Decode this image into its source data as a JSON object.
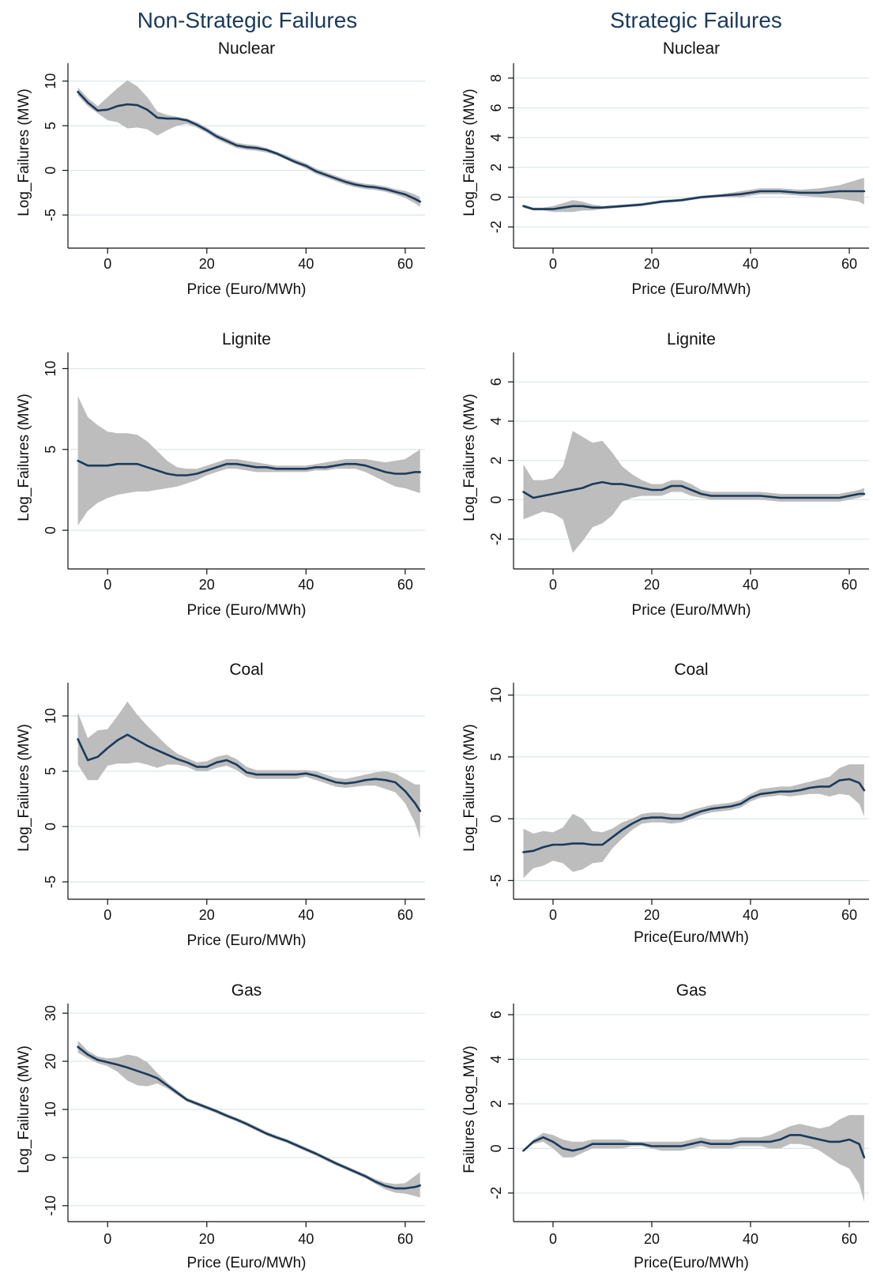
{
  "column_titles": [
    "Non-Strategic Failures",
    "Strategic Failures"
  ],
  "chart_data": [
    {
      "type": "line",
      "column": "Non-Strategic Failures",
      "title": "Nuclear",
      "xlabel": "Price (Euro/MWh)",
      "ylabel": "Log_Failures (MW)",
      "xlim": [
        -8,
        64
      ],
      "ylim": [
        -8,
        12
      ],
      "xticks": [
        0,
        20,
        40,
        60
      ],
      "yticks": [
        -5,
        0,
        5,
        10
      ],
      "grid": true,
      "x": [
        -6,
        -4,
        -2,
        0,
        2,
        4,
        6,
        8,
        10,
        12,
        14,
        16,
        18,
        20,
        22,
        24,
        26,
        28,
        30,
        32,
        34,
        36,
        38,
        40,
        42,
        44,
        46,
        48,
        50,
        52,
        54,
        56,
        58,
        60,
        62,
        63
      ],
      "y": [
        8.8,
        7.6,
        6.7,
        6.8,
        7.2,
        7.4,
        7.3,
        6.8,
        5.9,
        5.8,
        5.8,
        5.6,
        5.1,
        4.5,
        3.8,
        3.3,
        2.8,
        2.6,
        2.5,
        2.3,
        1.9,
        1.4,
        0.9,
        0.5,
        -0.1,
        -0.5,
        -0.9,
        -1.3,
        -1.6,
        -1.8,
        -1.9,
        -2.1,
        -2.4,
        -2.7,
        -3.2,
        -3.5
      ],
      "upper": [
        9.3,
        8.1,
        7.2,
        8.2,
        9.2,
        10.1,
        9.4,
        8.2,
        6.6,
        6.2,
        6.0,
        5.8,
        5.4,
        4.8,
        4.1,
        3.6,
        3.1,
        2.9,
        2.8,
        2.5,
        2.1,
        1.7,
        1.2,
        0.8,
        0.2,
        -0.2,
        -0.6,
        -1.0,
        -1.3,
        -1.5,
        -1.6,
        -1.8,
        -2.1,
        -2.3,
        -2.7,
        -3.0
      ],
      "lower": [
        8.4,
        7.2,
        6.4,
        5.6,
        5.4,
        4.7,
        4.8,
        4.6,
        3.9,
        4.5,
        5.0,
        5.2,
        4.8,
        4.2,
        3.5,
        3.0,
        2.5,
        2.3,
        2.2,
        2.0,
        1.7,
        1.2,
        0.7,
        0.2,
        -0.4,
        -0.8,
        -1.2,
        -1.6,
        -1.9,
        -2.1,
        -2.2,
        -2.4,
        -2.7,
        -3.1,
        -3.7,
        -4.1
      ]
    },
    {
      "type": "line",
      "column": "Strategic Failures",
      "title": "Nuclear",
      "xlabel": "Price (Euro/MWh)",
      "ylabel": "Log_Failures (MW)",
      "xlim": [
        -8,
        64
      ],
      "ylim": [
        -3,
        9
      ],
      "xticks": [
        0,
        20,
        40,
        60
      ],
      "yticks": [
        -2,
        0,
        2,
        4,
        6,
        8
      ],
      "grid": true,
      "x": [
        -6,
        -4,
        -2,
        0,
        2,
        4,
        6,
        8,
        10,
        14,
        18,
        22,
        26,
        30,
        34,
        38,
        42,
        46,
        50,
        54,
        58,
        62,
        63
      ],
      "y": [
        -0.6,
        -0.8,
        -0.8,
        -0.8,
        -0.7,
        -0.6,
        -0.6,
        -0.7,
        -0.7,
        -0.6,
        -0.5,
        -0.3,
        -0.2,
        0.0,
        0.1,
        0.2,
        0.4,
        0.4,
        0.3,
        0.3,
        0.4,
        0.4,
        0.4
      ],
      "upper": [
        -0.5,
        -0.7,
        -0.7,
        -0.6,
        -0.4,
        -0.2,
        -0.3,
        -0.5,
        -0.6,
        -0.5,
        -0.4,
        -0.2,
        -0.1,
        0.1,
        0.2,
        0.4,
        0.6,
        0.6,
        0.5,
        0.6,
        0.8,
        1.2,
        1.3
      ],
      "lower": [
        -0.7,
        -0.9,
        -0.9,
        -1.0,
        -1.0,
        -1.0,
        -0.9,
        -0.9,
        -0.8,
        -0.7,
        -0.6,
        -0.4,
        -0.3,
        -0.1,
        0.0,
        0.0,
        0.2,
        0.2,
        0.1,
        0.0,
        -0.1,
        -0.3,
        -0.5
      ]
    },
    {
      "type": "line",
      "column": "Non-Strategic Failures",
      "title": "Lignite",
      "xlabel": "Price (Euro/MWh)",
      "ylabel": "Log_Failures (MW)",
      "xlim": [
        -8,
        64
      ],
      "ylim": [
        -2,
        11
      ],
      "xticks": [
        0,
        20,
        40,
        60
      ],
      "yticks": [
        0,
        5,
        10
      ],
      "grid": true,
      "x": [
        -6,
        -4,
        -2,
        0,
        2,
        4,
        6,
        8,
        10,
        12,
        14,
        16,
        18,
        20,
        22,
        24,
        26,
        28,
        30,
        32,
        34,
        36,
        38,
        40,
        42,
        44,
        46,
        48,
        50,
        52,
        54,
        56,
        58,
        60,
        62,
        63
      ],
      "y": [
        4.3,
        4.0,
        4.0,
        4.0,
        4.1,
        4.1,
        4.1,
        3.9,
        3.7,
        3.5,
        3.4,
        3.4,
        3.5,
        3.7,
        3.9,
        4.1,
        4.1,
        4.0,
        3.9,
        3.9,
        3.8,
        3.8,
        3.8,
        3.8,
        3.9,
        3.9,
        4.0,
        4.1,
        4.1,
        4.0,
        3.8,
        3.6,
        3.5,
        3.5,
        3.6,
        3.6
      ],
      "upper": [
        8.3,
        7.0,
        6.5,
        6.1,
        6.0,
        6.0,
        5.9,
        5.5,
        4.9,
        4.3,
        3.9,
        3.8,
        3.8,
        4.0,
        4.2,
        4.4,
        4.4,
        4.3,
        4.2,
        4.1,
        4.0,
        4.0,
        4.0,
        4.0,
        4.1,
        4.2,
        4.3,
        4.4,
        4.4,
        4.4,
        4.3,
        4.2,
        4.3,
        4.4,
        4.8,
        5.0
      ],
      "lower": [
        0.3,
        1.2,
        1.7,
        2.0,
        2.2,
        2.3,
        2.4,
        2.4,
        2.5,
        2.6,
        2.7,
        2.9,
        3.1,
        3.4,
        3.6,
        3.8,
        3.8,
        3.7,
        3.6,
        3.6,
        3.6,
        3.6,
        3.6,
        3.6,
        3.7,
        3.7,
        3.8,
        3.8,
        3.8,
        3.6,
        3.3,
        3.0,
        2.7,
        2.6,
        2.4,
        2.3
      ]
    },
    {
      "type": "line",
      "column": "Strategic Failures",
      "title": "Lignite",
      "xlabel": "Price (Euro/MWh)",
      "ylabel": "Log_Failures (MW)",
      "xlim": [
        -8,
        64
      ],
      "ylim": [
        -3.2,
        7.5
      ],
      "xticks": [
        0,
        20,
        40,
        60
      ],
      "yticks": [
        -2,
        0,
        2,
        4,
        6
      ],
      "grid": true,
      "x": [
        -6,
        -4,
        -2,
        0,
        2,
        4,
        6,
        8,
        10,
        12,
        14,
        16,
        18,
        20,
        22,
        24,
        26,
        28,
        30,
        32,
        34,
        38,
        42,
        46,
        50,
        54,
        58,
        62,
        63
      ],
      "y": [
        0.4,
        0.1,
        0.2,
        0.3,
        0.4,
        0.5,
        0.6,
        0.8,
        0.9,
        0.8,
        0.8,
        0.7,
        0.6,
        0.5,
        0.5,
        0.7,
        0.7,
        0.5,
        0.3,
        0.2,
        0.2,
        0.2,
        0.2,
        0.1,
        0.1,
        0.1,
        0.1,
        0.3,
        0.3
      ],
      "upper": [
        1.8,
        1.0,
        1.0,
        1.1,
        1.7,
        3.5,
        3.2,
        2.9,
        3.0,
        2.4,
        1.7,
        1.3,
        1.0,
        0.8,
        0.8,
        1.0,
        1.0,
        0.8,
        0.5,
        0.4,
        0.4,
        0.4,
        0.4,
        0.3,
        0.3,
        0.3,
        0.3,
        0.5,
        0.6
      ],
      "lower": [
        -1.0,
        -0.8,
        -0.6,
        -0.7,
        -1.0,
        -2.7,
        -2.1,
        -1.4,
        -1.2,
        -0.8,
        -0.1,
        0.1,
        0.2,
        0.2,
        0.2,
        0.4,
        0.4,
        0.2,
        0.1,
        0.0,
        0.0,
        0.0,
        0.0,
        -0.1,
        -0.1,
        -0.1,
        -0.1,
        0.1,
        0.2
      ]
    },
    {
      "type": "line",
      "column": "Non-Strategic Failures",
      "title": "Coal",
      "xlabel": "Price (Euro/MWh)",
      "ylabel": "Log_Failures (MW)",
      "xlim": [
        -8,
        64
      ],
      "ylim": [
        -6,
        13
      ],
      "xticks": [
        0,
        20,
        40,
        60
      ],
      "yticks": [
        -5,
        0,
        5,
        10
      ],
      "grid": true,
      "x": [
        -6,
        -4,
        -2,
        0,
        2,
        4,
        6,
        8,
        10,
        12,
        14,
        16,
        18,
        20,
        22,
        24,
        26,
        28,
        30,
        32,
        34,
        36,
        38,
        40,
        42,
        44,
        46,
        48,
        50,
        52,
        54,
        56,
        58,
        60,
        62,
        63
      ],
      "y": [
        7.9,
        6.0,
        6.3,
        7.1,
        7.8,
        8.3,
        7.8,
        7.3,
        6.9,
        6.5,
        6.1,
        5.8,
        5.4,
        5.4,
        5.8,
        6.0,
        5.6,
        4.9,
        4.7,
        4.7,
        4.7,
        4.7,
        4.7,
        4.8,
        4.6,
        4.3,
        4.0,
        3.9,
        4.0,
        4.2,
        4.3,
        4.2,
        4.0,
        3.2,
        2.1,
        1.4
      ],
      "upper": [
        10.3,
        8.0,
        8.7,
        8.8,
        10.0,
        11.3,
        10.1,
        9.1,
        8.2,
        7.3,
        6.6,
        6.2,
        5.8,
        5.9,
        6.3,
        6.5,
        6.1,
        5.4,
        5.1,
        5.1,
        5.1,
        5.1,
        5.1,
        5.1,
        5.0,
        4.7,
        4.4,
        4.3,
        4.5,
        4.7,
        4.9,
        5.0,
        4.8,
        4.3,
        3.8,
        3.8
      ],
      "lower": [
        5.6,
        4.2,
        4.2,
        5.5,
        5.7,
        5.7,
        5.8,
        5.6,
        5.3,
        5.6,
        5.6,
        5.4,
        5.0,
        5.0,
        5.3,
        5.5,
        5.1,
        4.5,
        4.3,
        4.3,
        4.3,
        4.3,
        4.3,
        4.5,
        4.2,
        3.9,
        3.6,
        3.5,
        3.6,
        3.7,
        3.7,
        3.4,
        3.1,
        2.1,
        0.3,
        -1.1
      ]
    },
    {
      "type": "line",
      "column": "Strategic Failures",
      "title": "Coal",
      "xlabel": "Price(Euro/MWh)",
      "ylabel": "Log_Failures (MW)",
      "xlim": [
        -8,
        64
      ],
      "ylim": [
        -6,
        11
      ],
      "xticks": [
        0,
        20,
        40,
        60
      ],
      "yticks": [
        -5,
        0,
        5,
        10
      ],
      "grid": true,
      "x": [
        -6,
        -4,
        -2,
        0,
        2,
        4,
        6,
        8,
        10,
        12,
        14,
        16,
        18,
        20,
        22,
        24,
        26,
        28,
        30,
        32,
        34,
        36,
        38,
        40,
        42,
        44,
        46,
        48,
        50,
        52,
        54,
        56,
        58,
        60,
        62,
        63
      ],
      "y": [
        -2.7,
        -2.6,
        -2.3,
        -2.1,
        -2.1,
        -2.0,
        -2.0,
        -2.1,
        -2.1,
        -1.5,
        -0.9,
        -0.4,
        0.0,
        0.1,
        0.1,
        0.0,
        0.0,
        0.3,
        0.6,
        0.8,
        0.9,
        1.0,
        1.2,
        1.7,
        2.0,
        2.1,
        2.2,
        2.2,
        2.3,
        2.5,
        2.6,
        2.6,
        3.1,
        3.2,
        2.9,
        2.3
      ],
      "upper": [
        -0.8,
        -1.2,
        -1.0,
        -1.1,
        -0.7,
        0.4,
        0.0,
        -1.0,
        -1.1,
        -0.8,
        -0.3,
        0.0,
        0.4,
        0.5,
        0.5,
        0.4,
        0.4,
        0.7,
        0.9,
        1.1,
        1.2,
        1.3,
        1.5,
        2.0,
        2.4,
        2.5,
        2.6,
        2.6,
        2.8,
        3.0,
        3.2,
        3.4,
        4.1,
        4.4,
        4.4,
        4.4
      ],
      "lower": [
        -4.8,
        -4.0,
        -3.8,
        -3.4,
        -3.6,
        -4.3,
        -4.1,
        -3.6,
        -3.5,
        -2.4,
        -1.6,
        -0.9,
        -0.4,
        -0.3,
        -0.3,
        -0.4,
        -0.3,
        0.0,
        0.3,
        0.5,
        0.6,
        0.7,
        0.9,
        1.4,
        1.7,
        1.8,
        1.9,
        1.8,
        1.9,
        2.0,
        2.0,
        1.8,
        2.0,
        1.9,
        1.2,
        0.2
      ]
    },
    {
      "type": "line",
      "column": "Non-Strategic Failures",
      "title": "Gas",
      "xlabel": "Price (Euro/MWh)",
      "ylabel": "Log_Failures (MW)",
      "xlim": [
        -8,
        64
      ],
      "ylim": [
        -12,
        32
      ],
      "xticks": [
        0,
        20,
        40,
        60
      ],
      "yticks": [
        -10,
        0,
        10,
        20,
        30
      ],
      "grid": true,
      "x": [
        -6,
        -4,
        -2,
        0,
        2,
        4,
        6,
        8,
        10,
        12,
        14,
        16,
        18,
        20,
        22,
        24,
        26,
        28,
        30,
        32,
        34,
        36,
        38,
        40,
        42,
        44,
        46,
        48,
        50,
        52,
        54,
        56,
        58,
        60,
        62,
        63
      ],
      "y": [
        23.0,
        21.4,
        20.3,
        19.8,
        19.3,
        18.7,
        18.0,
        17.3,
        16.5,
        15.0,
        13.5,
        12.0,
        11.2,
        10.4,
        9.6,
        8.7,
        7.9,
        7.0,
        6.0,
        5.0,
        4.2,
        3.5,
        2.6,
        1.7,
        0.8,
        -0.2,
        -1.2,
        -2.1,
        -3.0,
        -3.9,
        -5.0,
        -5.9,
        -6.4,
        -6.4,
        -6.1,
        -5.8
      ],
      "upper": [
        24.3,
        22.2,
        21.0,
        20.6,
        20.8,
        21.4,
        21.0,
        19.8,
        17.6,
        15.6,
        14.0,
        12.4,
        11.6,
        10.8,
        10.0,
        9.1,
        8.3,
        7.4,
        6.4,
        5.4,
        4.6,
        3.9,
        3.0,
        2.1,
        1.2,
        0.2,
        -0.8,
        -1.7,
        -2.6,
        -3.5,
        -4.5,
        -5.2,
        -5.5,
        -5.3,
        -3.8,
        -3.0
      ],
      "lower": [
        21.8,
        20.6,
        19.6,
        19.0,
        17.8,
        16.0,
        15.0,
        14.8,
        15.4,
        14.4,
        13.0,
        11.6,
        10.8,
        10.0,
        9.2,
        8.3,
        7.5,
        6.6,
        5.6,
        4.6,
        3.8,
        3.1,
        2.2,
        1.3,
        0.4,
        -0.6,
        -1.6,
        -2.5,
        -3.4,
        -4.3,
        -5.5,
        -6.6,
        -7.3,
        -7.5,
        -8.0,
        -8.3
      ]
    },
    {
      "type": "line",
      "column": "Strategic Failures",
      "title": "Gas",
      "xlabel": "Price(Euro/MWh)",
      "ylabel": "Failures (Log_MW)",
      "xlim": [
        -8,
        64
      ],
      "ylim": [
        -3,
        6.5
      ],
      "xticks": [
        0,
        20,
        40,
        60
      ],
      "yticks": [
        -2,
        0,
        2,
        4,
        6
      ],
      "grid": true,
      "x": [
        -6,
        -4,
        -2,
        0,
        2,
        4,
        6,
        8,
        10,
        12,
        14,
        16,
        18,
        20,
        22,
        24,
        26,
        28,
        30,
        32,
        34,
        36,
        38,
        40,
        42,
        44,
        46,
        48,
        50,
        52,
        54,
        56,
        58,
        60,
        62,
        63
      ],
      "y": [
        -0.1,
        0.3,
        0.5,
        0.3,
        0.0,
        -0.1,
        0.0,
        0.2,
        0.2,
        0.2,
        0.2,
        0.2,
        0.2,
        0.1,
        0.1,
        0.1,
        0.1,
        0.2,
        0.3,
        0.2,
        0.2,
        0.2,
        0.3,
        0.3,
        0.3,
        0.3,
        0.4,
        0.6,
        0.6,
        0.5,
        0.4,
        0.3,
        0.3,
        0.4,
        0.2,
        -0.4
      ],
      "upper": [
        -0.1,
        0.4,
        0.7,
        0.6,
        0.4,
        0.3,
        0.3,
        0.4,
        0.4,
        0.4,
        0.4,
        0.3,
        0.3,
        0.3,
        0.3,
        0.3,
        0.3,
        0.4,
        0.5,
        0.4,
        0.4,
        0.4,
        0.5,
        0.5,
        0.5,
        0.6,
        0.8,
        1.0,
        1.1,
        1.0,
        0.9,
        1.0,
        1.3,
        1.5,
        1.5,
        1.5
      ],
      "lower": [
        -0.1,
        0.2,
        0.3,
        0.0,
        -0.4,
        -0.4,
        -0.2,
        0.0,
        0.0,
        0.0,
        0.0,
        0.1,
        0.1,
        0.0,
        -0.1,
        -0.1,
        -0.1,
        0.0,
        0.1,
        0.0,
        0.0,
        0.0,
        0.1,
        0.1,
        0.1,
        0.0,
        0.0,
        0.2,
        0.2,
        0.1,
        -0.1,
        -0.4,
        -0.7,
        -0.9,
        -1.6,
        -2.4
      ]
    }
  ]
}
